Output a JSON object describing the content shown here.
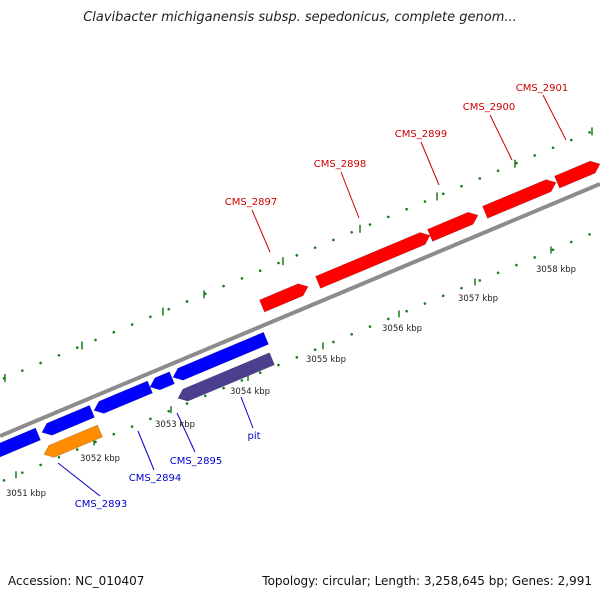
{
  "title": "Clavibacter michiganensis subsp. sepedonicus, complete genom...",
  "footer": {
    "accession_label": "Accession:",
    "accession": "NC_010407",
    "topology_label": "Topology:",
    "topology": "circular",
    "length_label": "Length:",
    "length": "3,258,645 bp",
    "genes_label": "Genes:",
    "genes": "2,991"
  },
  "colors": {
    "forward_gene": "#ff0000",
    "reverse_gene": "#0000ff",
    "rna_gene": "#ff8c00",
    "named_gene": "#4b3f8f",
    "backbone": "#8c8c8c",
    "tick": "#1a7a1a",
    "forward_label": "#cc0000",
    "reverse_label": "#0000cc"
  },
  "ticks": [
    {
      "label": "3051 kbp"
    },
    {
      "label": "3052 kbp"
    },
    {
      "label": "3053 kbp"
    },
    {
      "label": "3054 kbp"
    },
    {
      "label": "3055 kbp"
    },
    {
      "label": "3056 kbp"
    },
    {
      "label": "3057 kbp"
    },
    {
      "label": "3058 kbp"
    }
  ],
  "forward_genes": [
    {
      "name": "CMS_2897"
    },
    {
      "name": "CMS_2898"
    },
    {
      "name": "CMS_2899"
    },
    {
      "name": "CMS_2900"
    },
    {
      "name": "CMS_2901"
    }
  ],
  "reverse_genes": [
    {
      "name": "CMS_2893"
    },
    {
      "name": "CMS_2894"
    },
    {
      "name": "CMS_2895"
    },
    {
      "name": "pit"
    }
  ]
}
